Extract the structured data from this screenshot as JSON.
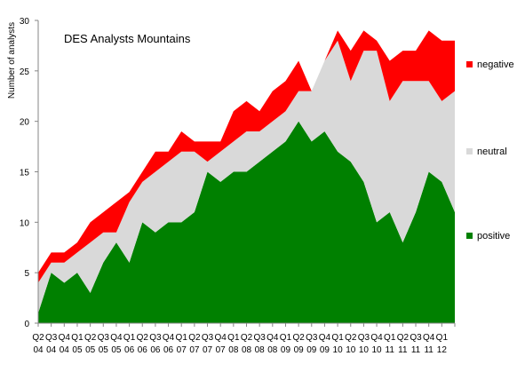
{
  "chart_data": {
    "type": "area",
    "stacked": true,
    "title": "DES Analysts Mountains",
    "xlabel": "",
    "ylabel": "Number of analysts",
    "ylim": [
      0,
      30
    ],
    "yticks": [
      0,
      5,
      10,
      15,
      20,
      25,
      30
    ],
    "grid": false,
    "legend_position": "right",
    "categories": [
      [
        "Q2",
        "04"
      ],
      [
        "Q3",
        "04"
      ],
      [
        "Q4",
        "04"
      ],
      [
        "Q1",
        "05"
      ],
      [
        "Q2",
        "05"
      ],
      [
        "Q3",
        "05"
      ],
      [
        "Q4",
        "05"
      ],
      [
        "Q1",
        "06"
      ],
      [
        "Q2",
        "06"
      ],
      [
        "Q3",
        "06"
      ],
      [
        "Q4",
        "06"
      ],
      [
        "Q1",
        "07"
      ],
      [
        "Q2",
        "07"
      ],
      [
        "Q3",
        "07"
      ],
      [
        "Q4",
        "07"
      ],
      [
        "Q1",
        "08"
      ],
      [
        "Q2",
        "08"
      ],
      [
        "Q3",
        "08"
      ],
      [
        "Q4",
        "08"
      ],
      [
        "Q1",
        "09"
      ],
      [
        "Q2",
        "09"
      ],
      [
        "Q3",
        "09"
      ],
      [
        "Q4",
        "09"
      ],
      [
        "Q1",
        "10"
      ],
      [
        "Q2",
        "10"
      ],
      [
        "Q3",
        "10"
      ],
      [
        "Q4",
        "10"
      ],
      [
        "Q1",
        "11"
      ],
      [
        "Q2",
        "11"
      ],
      [
        "Q3",
        "11"
      ],
      [
        "Q4",
        "11"
      ],
      [
        "Q1",
        "12"
      ],
      [
        " ",
        " "
      ]
    ],
    "series": [
      {
        "name": "positive",
        "color": "#008000",
        "values": [
          1,
          5,
          4,
          5,
          3,
          6,
          8,
          6,
          10,
          9,
          10,
          10,
          11,
          15,
          14,
          15,
          15,
          16,
          17,
          18,
          20,
          18,
          19,
          17,
          16,
          14,
          10,
          11,
          8,
          11,
          15,
          14,
          11
        ]
      },
      {
        "name": "neutral",
        "color": "#d9d9d9",
        "values": [
          3,
          1,
          2,
          2,
          5,
          3,
          1,
          6,
          4,
          6,
          6,
          7,
          6,
          1,
          3,
          3,
          4,
          3,
          3,
          3,
          3,
          5,
          7,
          11,
          8,
          13,
          17,
          11,
          16,
          13,
          9,
          8,
          12
        ]
      },
      {
        "name": "negative",
        "color": "#ff0000",
        "values": [
          1,
          1,
          1,
          1,
          2,
          2,
          3,
          1,
          1,
          2,
          1,
          2,
          1,
          2,
          1,
          3,
          3,
          2,
          3,
          3,
          3,
          0,
          0,
          1,
          3,
          2,
          1,
          4,
          3,
          3,
          5,
          6,
          5
        ]
      }
    ]
  }
}
